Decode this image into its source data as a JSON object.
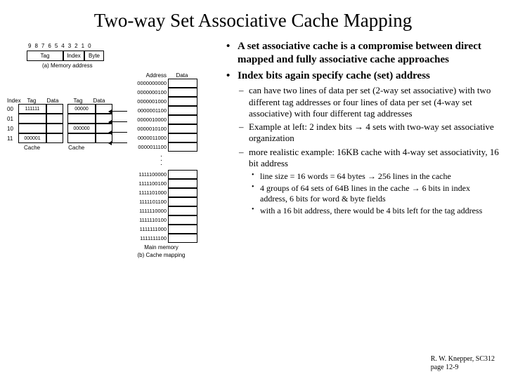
{
  "title": "Two-way Set Associative Cache Mapping",
  "bullets": {
    "b1": "A set associative cache is a compromise between direct mapped and fully associative cache approaches",
    "b2": "Index bits again specify cache (set) address",
    "s1": "can have two lines of data per set (2-way set associative) with two different tag addresses or four lines of data per set (4-way set associative) with four different tag addresses",
    "s2": "Example at left:  2 index bits → 4 sets with two-way set associative organization",
    "s3": "more realistic example:  16KB cache with 4-way set associativity, 16 bit address",
    "t1": "line size = 16 words = 64 bytes → 256 lines in the cache",
    "t2": "4 groups of 64 sets of 64B lines in the cache → 6 bits in index address, 6 bits for word & byte fields",
    "t3": "with a 16 bit address, there would be 4 bits left for the tag address"
  },
  "footer": {
    "l1": "R. W. Knepper, SC312",
    "l2": "page 12-9"
  },
  "diagram": {
    "bit_positions": [
      "9",
      "8",
      "7",
      "6",
      "5",
      "4",
      "3",
      "2",
      "1",
      "0"
    ],
    "mem_addr_fields": {
      "tag": "Tag",
      "index": "Index",
      "byte": "Byte"
    },
    "mem_addr_caption": "(a) Memory address",
    "cache": {
      "headers": {
        "index": "Index",
        "tag": "Tag",
        "data": "Data"
      },
      "rows": [
        {
          "idx": "00",
          "tag1": "111111",
          "tag2": "00000"
        },
        {
          "idx": "01",
          "tag1": "",
          "tag2": ""
        },
        {
          "idx": "10",
          "tag1": "",
          "tag2": "000000"
        },
        {
          "idx": "11",
          "tag1": "000001",
          "tag2": ""
        }
      ],
      "label": "Cache"
    },
    "mainmem": {
      "headers": {
        "address": "Address",
        "data": "Data"
      },
      "top_addrs": [
        "0000000000",
        "0000000100",
        "0000001000",
        "0000001100",
        "0000010000",
        "0000010100",
        "0000011000",
        "0000011100"
      ],
      "bot_addrs": [
        "1111100000",
        "1111100100",
        "1111101000",
        "1111101100",
        "1111110000",
        "1111110100",
        "1111111000",
        "1111111100"
      ],
      "label": "Main memory",
      "caption": "(b) Cache mapping"
    }
  }
}
